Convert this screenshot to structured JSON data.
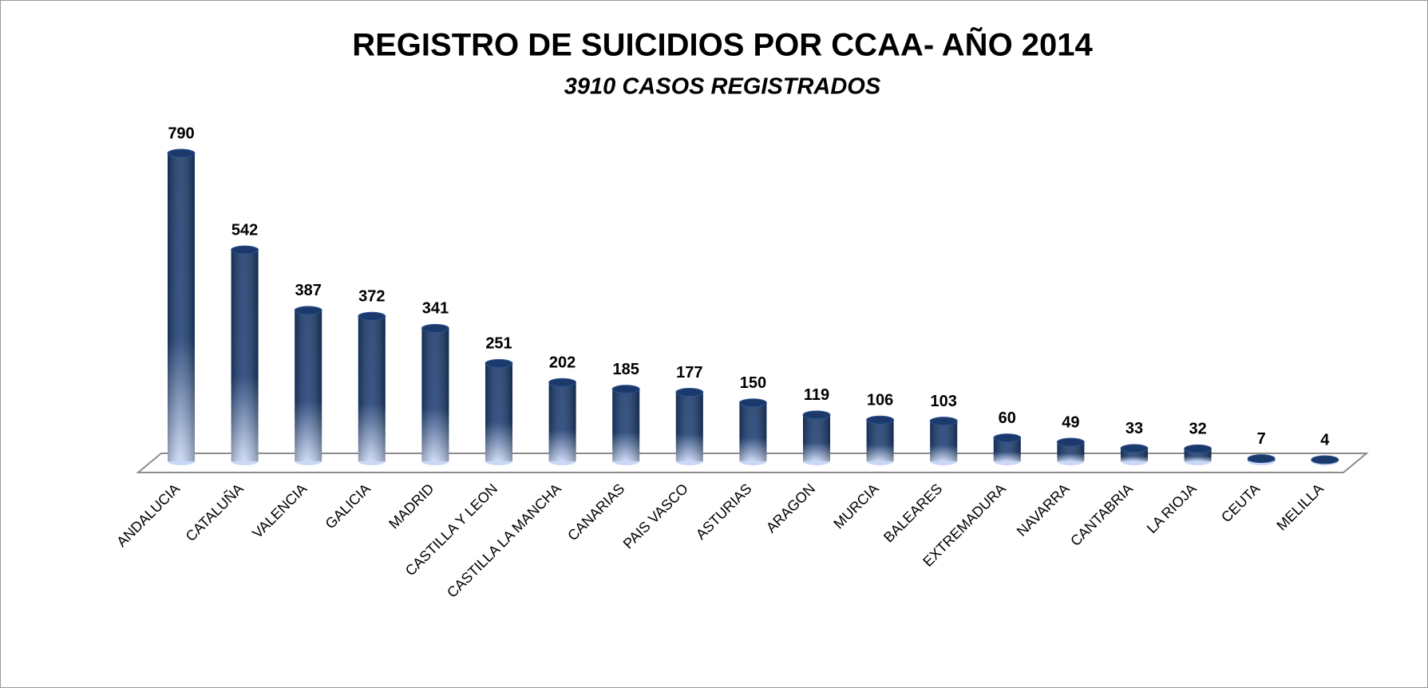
{
  "chart_data": {
    "type": "bar",
    "title": "REGISTRO DE SUICIDIOS POR CCAA- AÑO 2014",
    "subtitle": "3910 CASOS REGISTRADOS",
    "categories": [
      "ANDALUCIA",
      "CATALUÑA",
      "VALENCIA",
      "GALICIA",
      "MADRID",
      "CASTILLA Y LEON",
      "CASTILLA LA MANCHA",
      "CANARIAS",
      "PAIS VASCO",
      "ASTURIAS",
      "ARAGON",
      "MURCIA",
      "BALEARES",
      "EXTREMADURA",
      "NAVARRA",
      "CANTABRIA",
      "LA RIOJA",
      "CEUTA",
      "MELILLA"
    ],
    "values": [
      790,
      542,
      387,
      372,
      341,
      251,
      202,
      185,
      177,
      150,
      119,
      106,
      103,
      60,
      49,
      33,
      32,
      7,
      4
    ],
    "color": "#1b3a6b"
  }
}
